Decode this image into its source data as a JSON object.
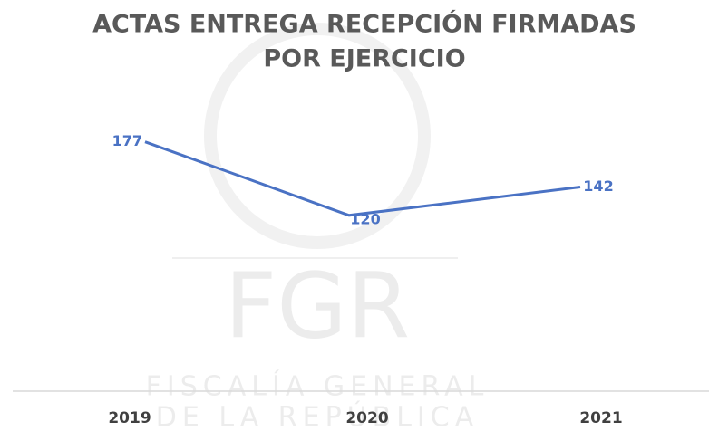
{
  "chart_data": {
    "type": "line",
    "title": [
      "ACTAS ENTREGA RECEPCIÓN FIRMADAS",
      "POR EJERCICIO"
    ],
    "categories": [
      "2019",
      "2020",
      "2021"
    ],
    "series": [
      {
        "color": "#4a72c4",
        "values": [
          177,
          120,
          142
        ]
      }
    ],
    "ylim": [
      0,
      200
    ],
    "watermark": {
      "logo": "FGR",
      "lines": [
        "FISCALÍA GENERAL",
        "DE LA REPÚBLICA"
      ]
    }
  }
}
